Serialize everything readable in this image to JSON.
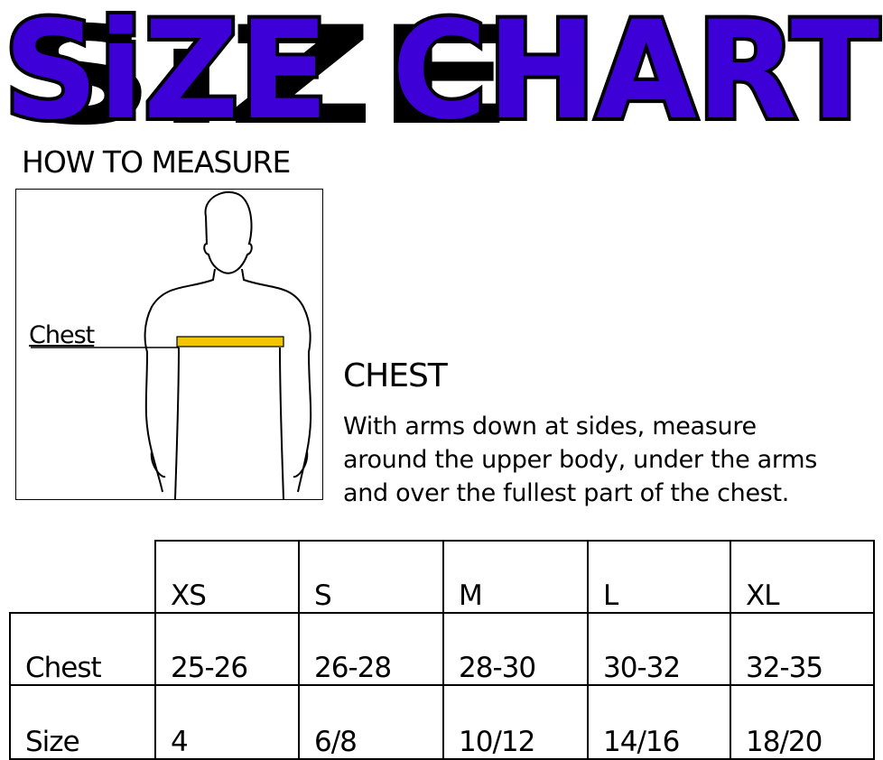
{
  "title": {
    "text": "SiZE CHART",
    "fill": "#3d00d6",
    "outline": "#000000"
  },
  "how_to_measure": "HOW TO MEASURE",
  "figure": {
    "label": "Chest",
    "tape_color": "#f2c500"
  },
  "chest_section": {
    "heading": "CHEST",
    "lines": [
      "With arms down at sides, measure",
      "around the upper body, under the arms",
      "and over the fullest part of the chest."
    ]
  },
  "table": {
    "sizes": [
      "XS",
      "S",
      "M",
      "L",
      "XL"
    ],
    "rows": [
      {
        "label": "Chest",
        "values": [
          "25-26",
          "26-28",
          "28-30",
          "30-32",
          "32-35"
        ]
      },
      {
        "label": "Size",
        "values": [
          "4",
          "6/8",
          "10/12",
          "14/16",
          "18/20"
        ]
      }
    ]
  }
}
